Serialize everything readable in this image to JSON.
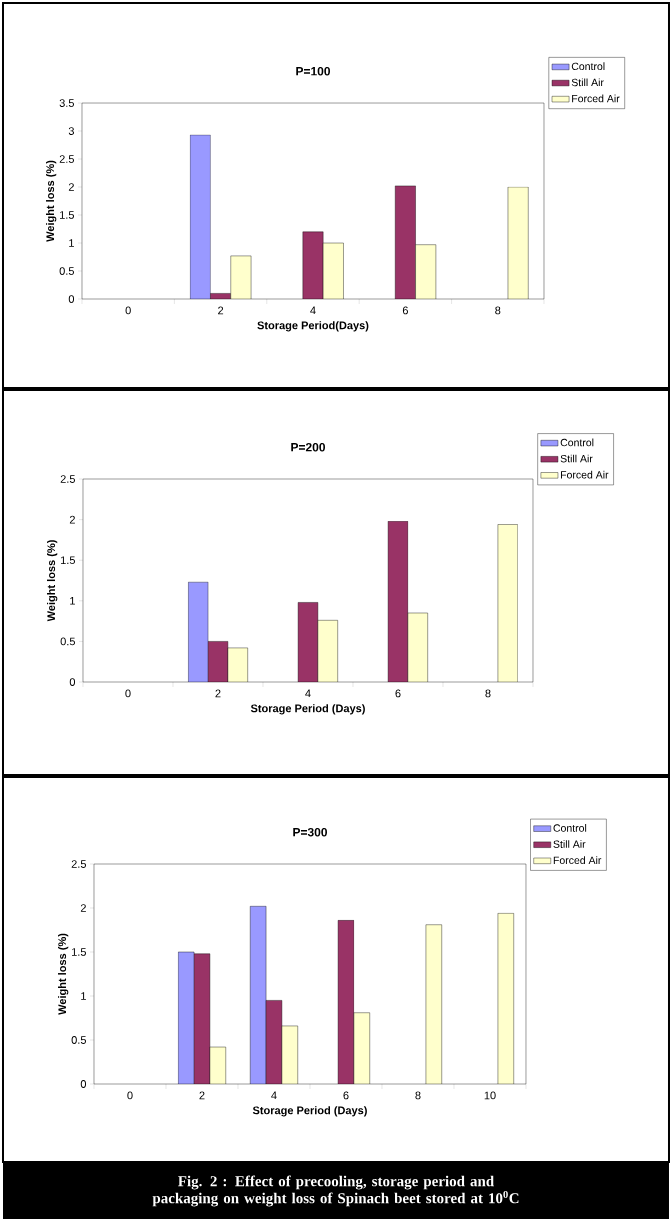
{
  "chart_data": [
    {
      "type": "bar",
      "title": "P=100",
      "xlabel": "Storage Period(Days)",
      "ylabel": "Weight loss (%)",
      "categories": [
        "0",
        "2",
        "4",
        "6",
        "8"
      ],
      "ylim": [
        0,
        3.5
      ],
      "yticks": [
        0,
        0.5,
        1,
        1.5,
        2,
        2.5,
        3,
        3.5
      ],
      "legend": "top right",
      "grid": false,
      "series": [
        {
          "name": "Control",
          "color": "#9999ff",
          "values": [
            null,
            2.93,
            null,
            null,
            null
          ]
        },
        {
          "name": "Still Air",
          "color": "#993366",
          "values": [
            null,
            0.1,
            1.2,
            2.02,
            null
          ]
        },
        {
          "name": "Forced Air",
          "color": "#ffffcc",
          "values": [
            null,
            0.77,
            1.0,
            0.97,
            2.0
          ]
        }
      ]
    },
    {
      "type": "bar",
      "title": "P=200",
      "xlabel": "Storage Period (Days)",
      "ylabel": "Weight loss (%)",
      "categories": [
        "0",
        "2",
        "4",
        "6",
        "8"
      ],
      "ylim": [
        0,
        2.5
      ],
      "yticks": [
        0,
        0.5,
        1,
        1.5,
        2,
        2.5
      ],
      "legend": "top right",
      "grid": false,
      "series": [
        {
          "name": "Control",
          "color": "#9999ff",
          "values": [
            null,
            1.23,
            null,
            null,
            null
          ]
        },
        {
          "name": "Still Air",
          "color": "#993366",
          "values": [
            null,
            0.5,
            0.98,
            1.98,
            null
          ]
        },
        {
          "name": "Forced Air",
          "color": "#ffffcc",
          "values": [
            null,
            0.42,
            0.76,
            0.85,
            1.94
          ]
        }
      ]
    },
    {
      "type": "bar",
      "title": "P=300",
      "xlabel": "Storage Period (Days)",
      "ylabel": "Weight loss (%)",
      "categories": [
        "0",
        "2",
        "4",
        "6",
        "8",
        "10"
      ],
      "ylim": [
        0,
        2.5
      ],
      "yticks": [
        0,
        0.5,
        1,
        1.5,
        2,
        2.5
      ],
      "legend": "top right",
      "grid": false,
      "annotations": [
        "Fig. 2 :   Effect of precooling, storage period and packaging on weight loss of Spinach beet stored at 10$^{0}$C"
      ],
      "series": [
        {
          "name": "Control",
          "color": "#9999ff",
          "values": [
            null,
            1.5,
            2.02,
            null,
            null,
            null
          ]
        },
        {
          "name": "Still Air",
          "color": "#993366",
          "values": [
            null,
            1.48,
            0.95,
            1.86,
            null,
            null
          ]
        },
        {
          "name": "Forced Air",
          "color": "#ffffcc",
          "values": [
            null,
            0.42,
            0.66,
            0.81,
            1.81,
            1.94
          ]
        }
      ]
    }
  ]
}
